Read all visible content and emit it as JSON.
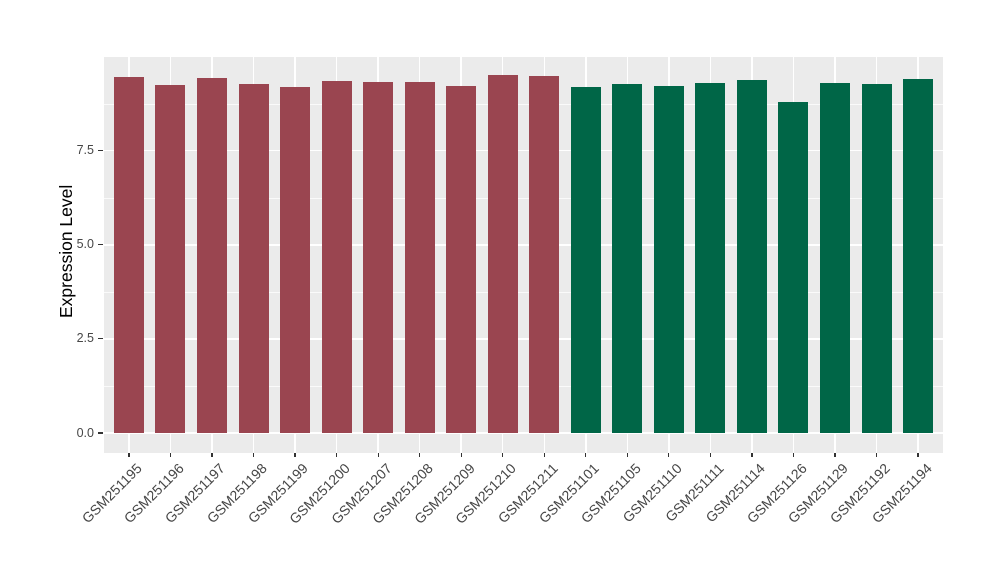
{
  "chart_data": {
    "type": "bar",
    "title": "",
    "xlabel": "",
    "ylabel": "Expression Level",
    "categories": [
      "GSM251195",
      "GSM251196",
      "GSM251197",
      "GSM251198",
      "GSM251199",
      "GSM251200",
      "GSM251207",
      "GSM251208",
      "GSM251209",
      "GSM251210",
      "GSM251211",
      "GSM251101",
      "GSM251105",
      "GSM251110",
      "GSM251111",
      "GSM251114",
      "GSM251126",
      "GSM251129",
      "GSM251192",
      "GSM251194"
    ],
    "values": [
      9.45,
      9.24,
      9.42,
      9.28,
      9.18,
      9.34,
      9.33,
      9.33,
      9.22,
      9.52,
      9.48,
      9.19,
      9.27,
      9.23,
      9.31,
      9.37,
      8.79,
      9.31,
      9.28,
      9.4
    ],
    "bar_colors": [
      "#9A4550",
      "#9A4550",
      "#9A4550",
      "#9A4550",
      "#9A4550",
      "#9A4550",
      "#9A4550",
      "#9A4550",
      "#9A4550",
      "#9A4550",
      "#9A4550",
      "#006647",
      "#006647",
      "#006647",
      "#006647",
      "#006647",
      "#006647",
      "#006647",
      "#006647",
      "#006647"
    ],
    "group_colors": {
      "left_group": "#9A4550",
      "right_group": "#006647"
    },
    "ytick_labels": [
      "0.0",
      "2.5",
      "5.0",
      "7.5"
    ],
    "ytick_values": [
      0,
      2.5,
      5.0,
      7.5
    ],
    "ylim": [
      0,
      10
    ],
    "grid": "on",
    "legend": "none",
    "panel_background": "#EBEBEB",
    "gridline_color": "#FFFFFF",
    "tick_color": "#333333",
    "axis_text_color": "#464646"
  }
}
